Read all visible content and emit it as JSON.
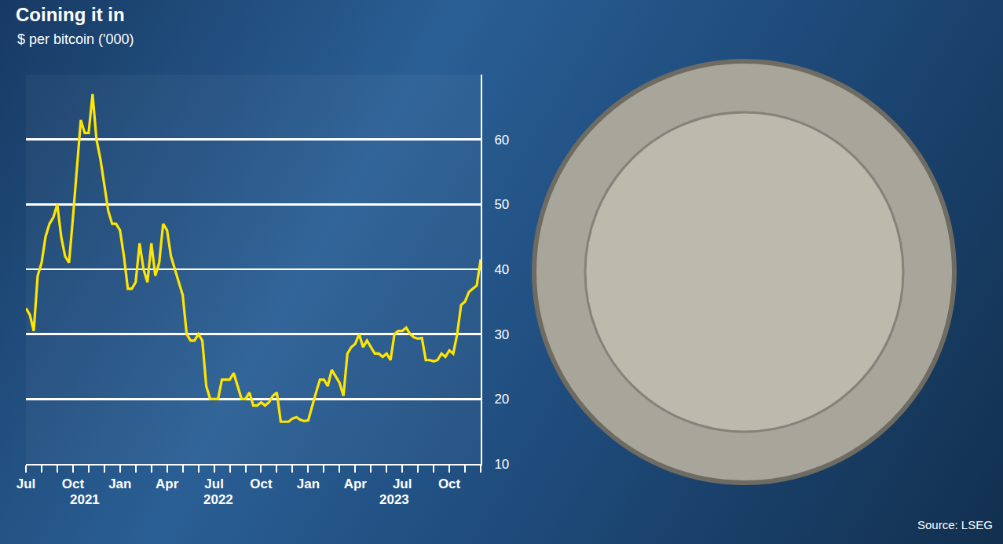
{
  "chart_data": {
    "type": "line",
    "title": "Coining it in",
    "subtitle": "$ per bitcoin ('000)",
    "source": "Source: LSEG",
    "categories": [
      "Jul",
      null,
      null,
      null,
      null,
      null,
      null,
      null,
      null,
      null,
      null,
      null,
      "Oct",
      null,
      null,
      null,
      null,
      null,
      null,
      null,
      null,
      null,
      null,
      null,
      "Jan",
      null,
      null,
      null,
      null,
      null,
      null,
      null,
      null,
      null,
      null,
      null,
      "Apr",
      null,
      null,
      null,
      null,
      null,
      null,
      null,
      null,
      null,
      null,
      null,
      "Jul",
      null,
      null,
      null,
      null,
      null,
      null,
      null,
      null,
      null,
      null,
      null,
      "Oct",
      null,
      null,
      null,
      null,
      null,
      null,
      null,
      null,
      null,
      null,
      null,
      "Jan",
      null,
      null,
      null,
      null,
      null,
      null,
      null,
      null,
      null,
      null,
      null,
      "Apr",
      null,
      null,
      null,
      null,
      null,
      null,
      null,
      null,
      null,
      null,
      null,
      "Jul",
      null,
      null,
      null,
      null,
      null,
      null,
      null,
      null,
      null,
      null,
      null,
      "Oct",
      null,
      null,
      null,
      null,
      null,
      null,
      null,
      null
    ],
    "values": [
      34,
      33,
      30.5,
      39,
      41,
      45,
      47,
      48,
      50,
      45,
      42,
      41,
      48,
      55,
      63,
      61,
      61,
      67,
      60,
      57,
      53,
      49,
      47,
      47,
      46,
      42,
      37,
      37,
      38,
      44,
      40,
      38,
      44,
      39,
      41,
      47,
      46,
      42,
      40,
      38,
      36,
      30,
      29,
      29,
      30,
      29,
      22,
      20,
      20,
      20,
      23,
      23,
      23,
      24,
      22,
      20,
      20,
      21,
      19,
      19,
      19.5,
      19,
      19.5,
      20.5,
      21,
      16.5,
      16.5,
      16.5,
      17,
      17.2,
      16.8,
      16.6,
      16.7,
      19,
      21,
      23,
      23,
      22,
      24.5,
      23.5,
      22.5,
      20.5,
      27,
      28,
      28.5,
      30,
      28,
      29,
      28,
      27,
      27,
      26.5,
      27,
      26,
      30,
      30.5,
      30.5,
      31,
      30,
      29.5,
      29.3,
      29.4,
      26,
      26,
      25.8,
      26,
      27,
      26.5,
      27.5,
      27,
      30,
      34.5,
      35,
      36.5,
      37,
      37.5,
      41.5
    ],
    "color": "#ffe500",
    "ylim": [
      10,
      70
    ],
    "yticks": [
      10,
      20,
      30,
      40,
      50,
      60
    ],
    "grid": true,
    "annotations": [
      {
        "text": "2021",
        "x": 15
      },
      {
        "text": "2022",
        "x": 49
      },
      {
        "text": "2023",
        "x": 94
      }
    ]
  }
}
